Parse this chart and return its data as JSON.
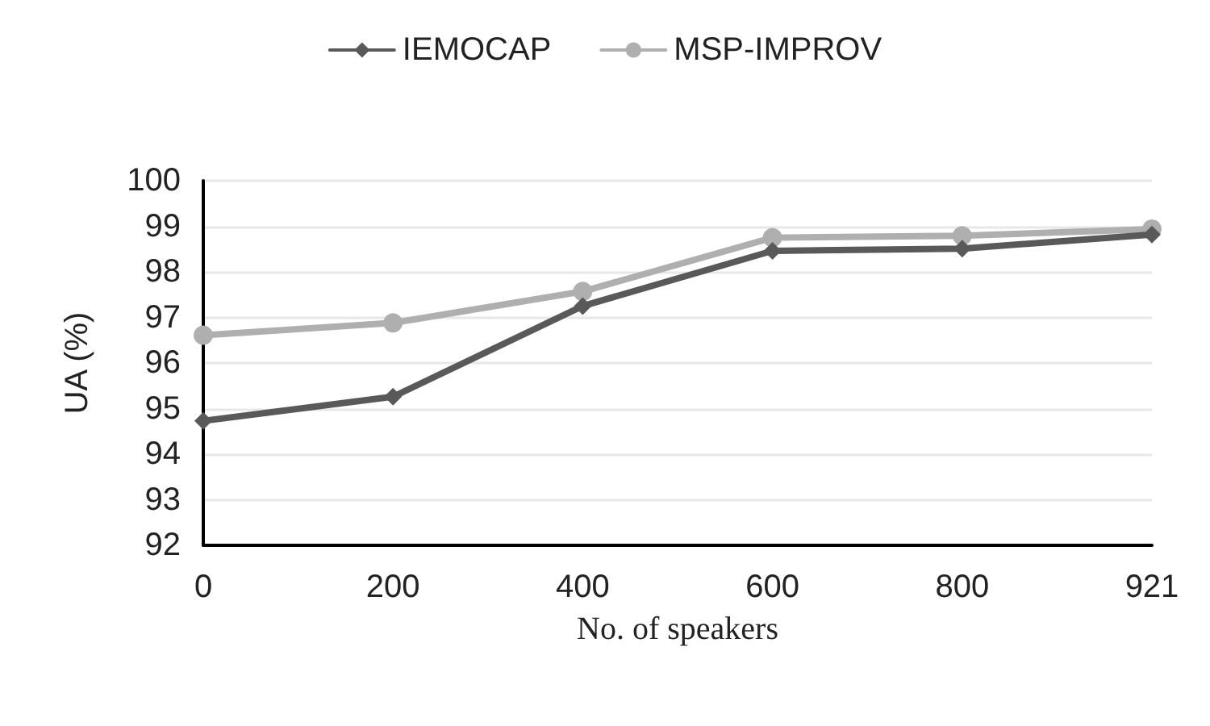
{
  "chart_data": {
    "type": "line",
    "xlabel": "No. of speakers",
    "ylabel": "UA (%)",
    "categories": [
      "0",
      "200",
      "400",
      "600",
      "800",
      "921"
    ],
    "series": [
      {
        "name": "IEMOCAP",
        "color": "#595959",
        "marker": "diamond",
        "values": [
          94.73,
          95.26,
          97.25,
          98.46,
          98.51,
          98.82
        ]
      },
      {
        "name": "MSP-IMPROV",
        "color": "#afafaf",
        "marker": "circle",
        "values": [
          96.61,
          96.88,
          97.57,
          98.75,
          98.79,
          98.94
        ]
      }
    ],
    "ylim": [
      92,
      100
    ],
    "yticks": [
      92,
      93,
      94,
      95,
      96,
      97,
      98,
      99,
      100
    ],
    "grid": "y",
    "legend": "top",
    "line_style": "solid"
  }
}
